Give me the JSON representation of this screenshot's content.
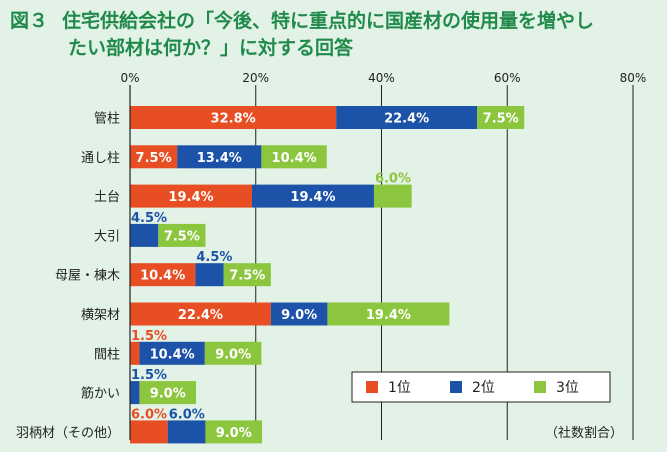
{
  "title": {
    "figure_no": "図３",
    "line1": "住宅供給会社の「今後、特に重点的に国産材の使用量を増やし",
    "line2": "たい部材は何か？」に対する回答"
  },
  "note": "（社数割合）",
  "colors": {
    "rank1": "#e84e23",
    "rank2": "#1c53a8",
    "rank3": "#8cc63e",
    "outside_label_rank1": "#e84e23",
    "outside_label_rank2": "#1c53a8"
  },
  "chart_data": {
    "type": "bar",
    "orientation": "horizontal",
    "stacked": true,
    "categories": [
      "管柱",
      "通し柱",
      "土台",
      "大引",
      "母屋・棟木",
      "横架材",
      "間柱",
      "筋かい",
      "羽柄材（その他）"
    ],
    "series": [
      {
        "name": "1位",
        "values": [
          32.8,
          7.5,
          19.4,
          0,
          10.4,
          22.4,
          1.5,
          0,
          6.0
        ],
        "labels": [
          "32.8%",
          "7.5%",
          "19.4%",
          "",
          "10.4%",
          "22.4%",
          "1.5%",
          "",
          "6.0%"
        ]
      },
      {
        "name": "2位",
        "values": [
          22.4,
          13.4,
          19.4,
          4.5,
          4.5,
          9.0,
          10.4,
          1.5,
          6.0
        ],
        "labels": [
          "22.4%",
          "13.4%",
          "19.4%",
          "4.5%",
          "4.5%",
          "9.0%",
          "10.4%",
          "1.5%",
          "6.0%"
        ]
      },
      {
        "name": "3位",
        "values": [
          7.5,
          10.4,
          6.0,
          7.5,
          7.5,
          19.4,
          9.0,
          9.0,
          9.0
        ],
        "labels": [
          "7.5%",
          "10.4%",
          "6.0%",
          "7.5%",
          "7.5%",
          "19.4%",
          "9.0%",
          "9.0%",
          "9.0%"
        ]
      }
    ],
    "xaxis_ticks": [
      "0%",
      "20%",
      "40%",
      "60%",
      "80%"
    ],
    "xlim": [
      0,
      80
    ],
    "grid": true,
    "legend": [
      "1位",
      "2位",
      "3位"
    ],
    "legend_position": "bottom-right"
  }
}
